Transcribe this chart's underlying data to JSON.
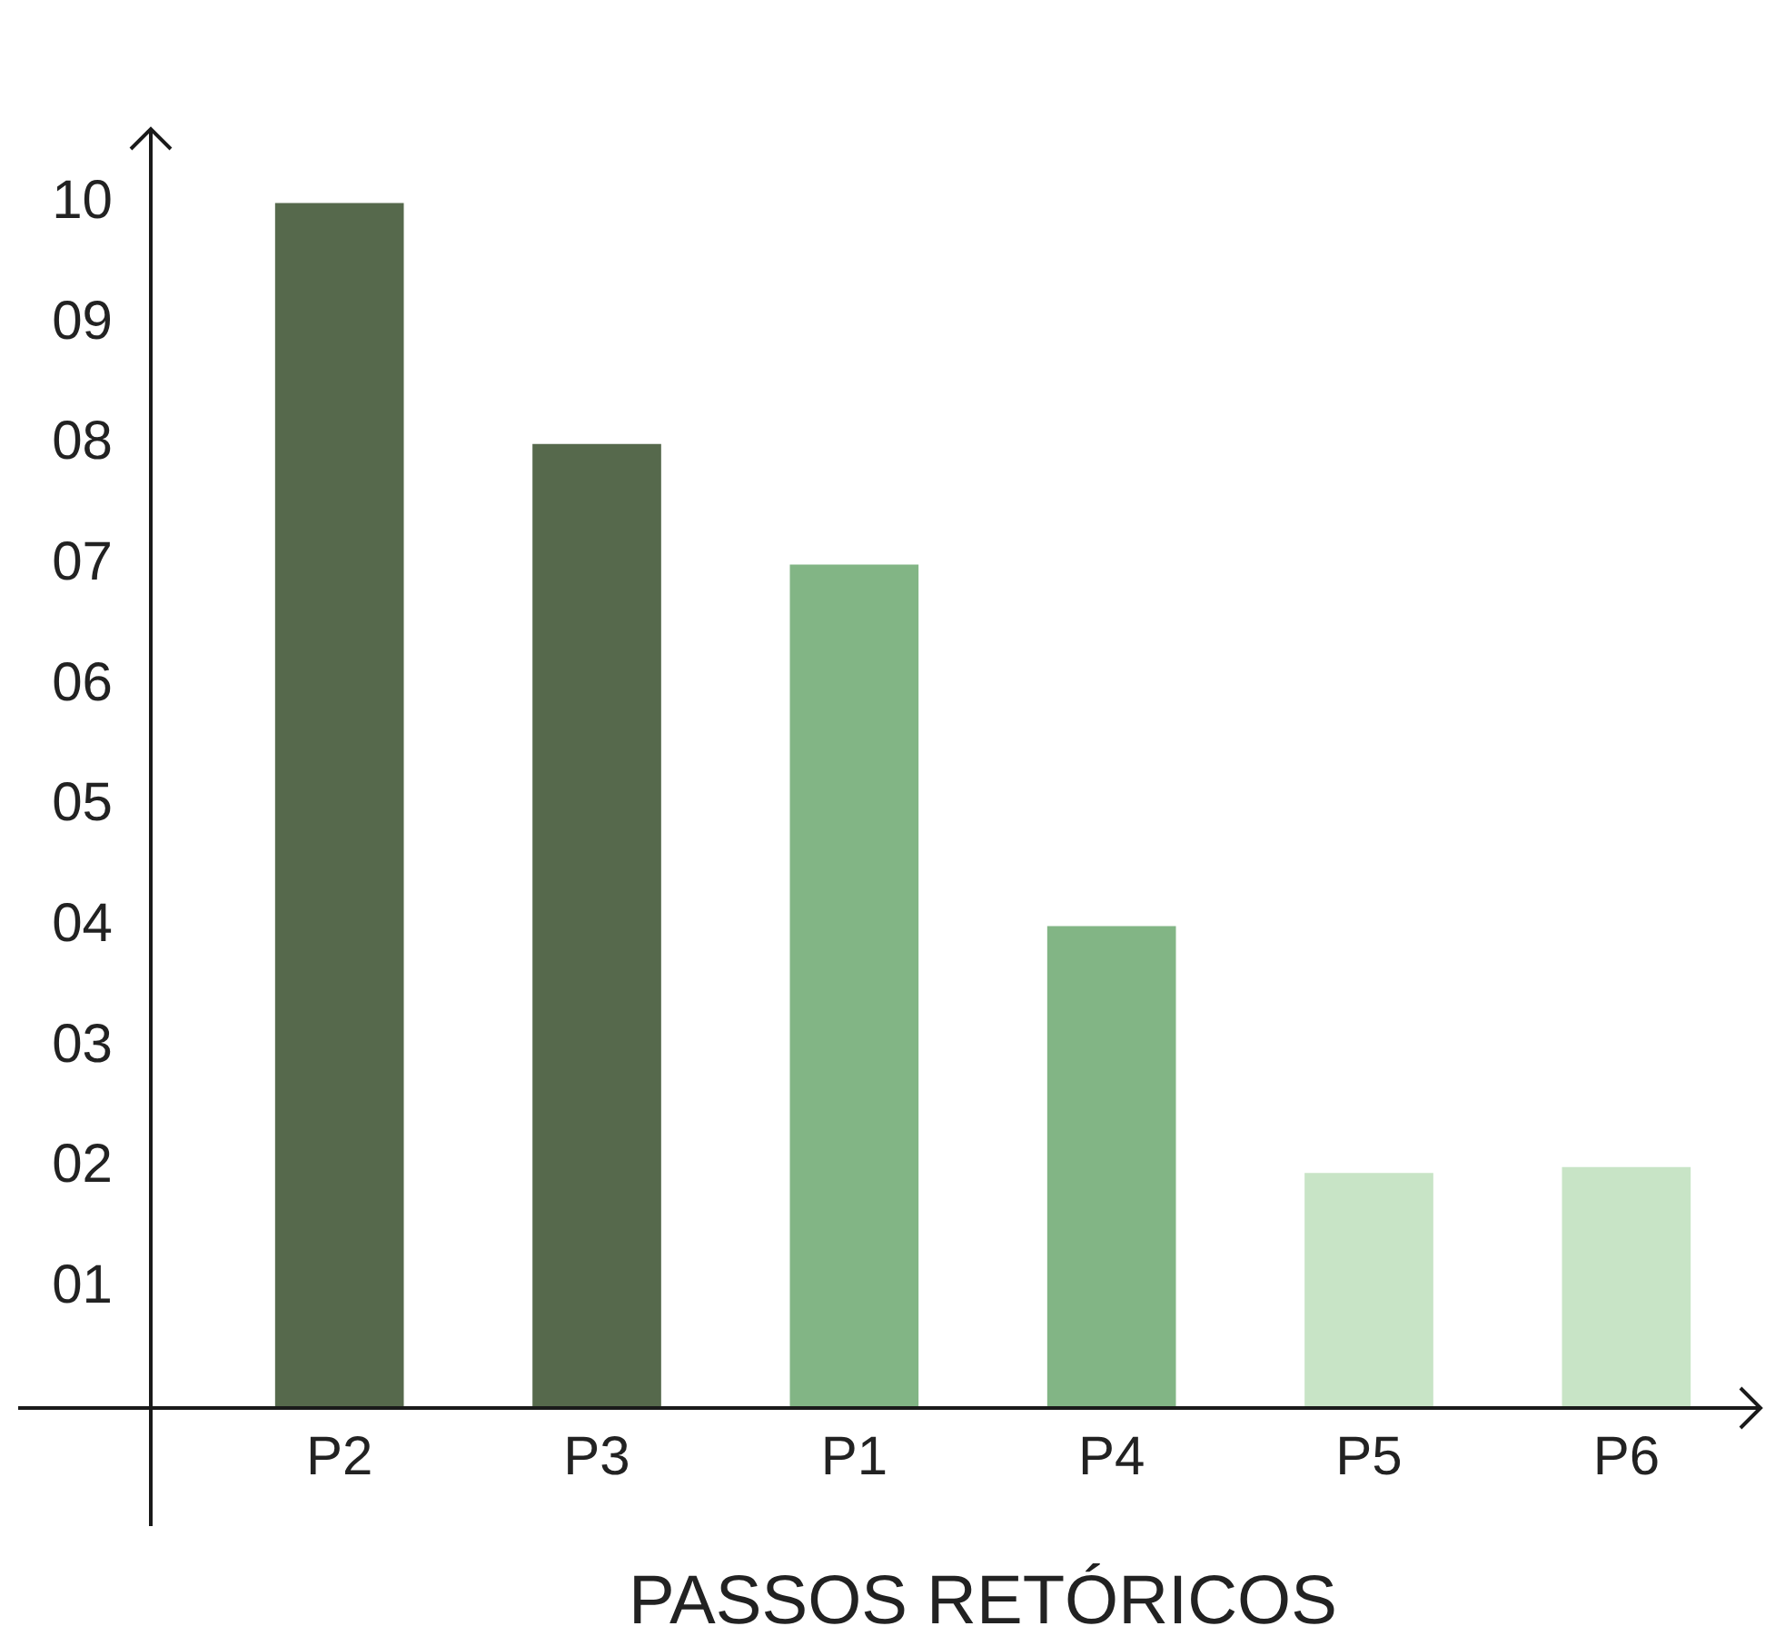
{
  "chart_data": {
    "type": "bar",
    "xlabel": "PASSOS RETÓRICOS",
    "categories": [
      "P2",
      "P3",
      "P1",
      "P4",
      "P5",
      "P6"
    ],
    "values": [
      10,
      8,
      7,
      4,
      1.95,
      2
    ],
    "colors": [
      "#56694c",
      "#56694c",
      "#82b585",
      "#82b585",
      "#c8e4c6",
      "#c8e4c6"
    ],
    "ylim": [
      0,
      10.6
    ],
    "yticks": [
      {
        "value": 1,
        "label": "01"
      },
      {
        "value": 2,
        "label": "02"
      },
      {
        "value": 3,
        "label": "03"
      },
      {
        "value": 4,
        "label": "04"
      },
      {
        "value": 5,
        "label": "05"
      },
      {
        "value": 6,
        "label": "06"
      },
      {
        "value": 7,
        "label": "07"
      },
      {
        "value": 8,
        "label": "08"
      },
      {
        "value": 9,
        "label": "09"
      },
      {
        "value": 10,
        "label": "10"
      }
    ],
    "grid": false,
    "legend": false
  }
}
